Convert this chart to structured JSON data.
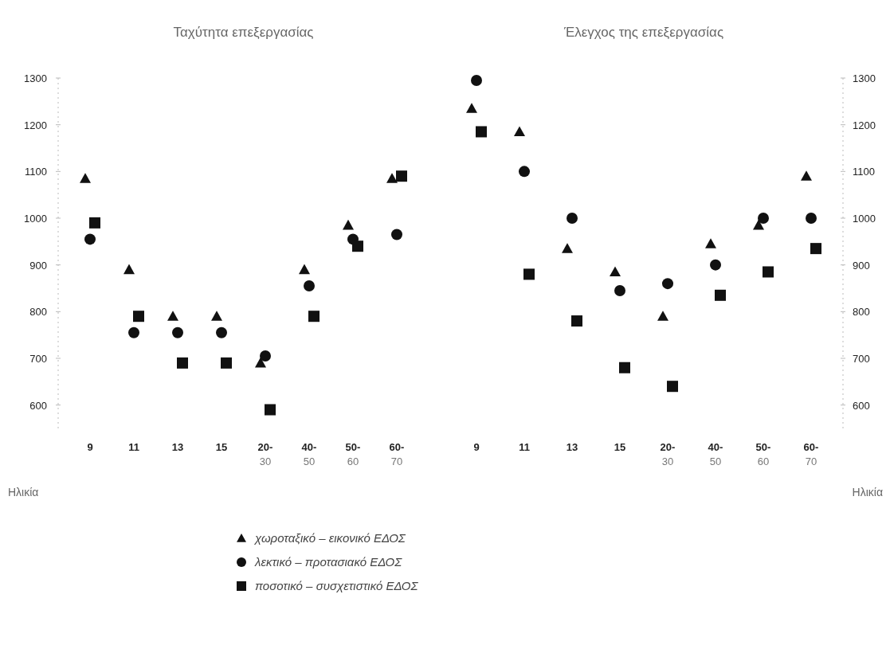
{
  "chart_data": [
    {
      "type": "scatter",
      "title": "Ταχύτητα επεξεργασίας",
      "xlabel": "Ηλικία",
      "categories": [
        "9",
        "11",
        "13",
        "15",
        "20-30",
        "40-50",
        "50-60",
        "60-70"
      ],
      "ylim": [
        550,
        1300
      ],
      "yticks": [
        600,
        700,
        800,
        900,
        1000,
        1100,
        1200,
        1300
      ],
      "grid": false,
      "legend": "bottom",
      "series": [
        {
          "name": "χωροταξικό – εικονικό ΕΔΟΣ",
          "color": "#111111",
          "marker": "triangle",
          "values": [
            1085,
            890,
            790,
            790,
            690,
            890,
            985,
            1085
          ]
        },
        {
          "name": "λεκτικό – προτασιακό ΕΔΟΣ",
          "color": "#111111",
          "marker": "circle",
          "values": [
            955,
            755,
            755,
            755,
            705,
            855,
            955,
            965
          ]
        },
        {
          "name": "ποσοτικό – συσχετιστικό ΕΔΟΣ",
          "color": "#111111",
          "marker": "square",
          "values": [
            990,
            790,
            690,
            690,
            590,
            790,
            940,
            1090
          ]
        }
      ]
    },
    {
      "type": "scatter",
      "title": "Έλεγχος της επεξεργασίας",
      "xlabel": "Ηλικία",
      "categories": [
        "9",
        "11",
        "13",
        "15",
        "20-30",
        "40-50",
        "50-60",
        "60-70"
      ],
      "y2lim": [
        550,
        1300
      ],
      "y2ticks": [
        600,
        700,
        800,
        900,
        1000,
        1100,
        1200,
        1300
      ],
      "grid": false,
      "series": [
        {
          "axis": "y2",
          "color": "#111111",
          "marker": "triangle",
          "values": [
            1235,
            1185,
            935,
            885,
            790,
            945,
            985,
            1090
          ]
        },
        {
          "axis": "y2",
          "color": "#111111",
          "marker": "circle",
          "values": [
            1295,
            1100,
            1000,
            845,
            860,
            900,
            1000,
            1000
          ]
        },
        {
          "axis": "y2",
          "color": "#111111",
          "marker": "square",
          "values": [
            1185,
            880,
            780,
            680,
            640,
            835,
            885,
            935
          ]
        }
      ]
    }
  ]
}
